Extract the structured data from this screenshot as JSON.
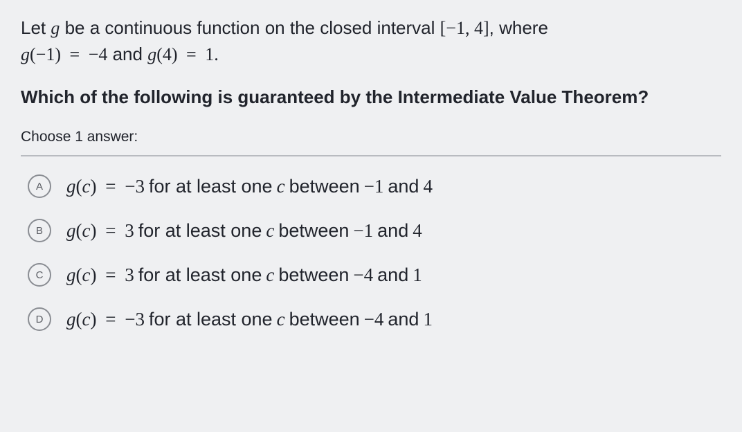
{
  "intro": {
    "part1": "Let ",
    "g": "g",
    "part2": " be a continuous function on the closed interval ",
    "interval_open": "[",
    "interval_a": "−1",
    "interval_comma": ", ",
    "interval_b": "4",
    "interval_close": "]",
    "part3": ", where",
    "line2_g1": "g",
    "line2_p1o": "(",
    "line2_arg1": "−1",
    "line2_p1c": ")",
    "line2_eq1": " = ",
    "line2_val1": "−4",
    "line2_and": " and ",
    "line2_g2": "g",
    "line2_p2o": "(",
    "line2_arg2": "4",
    "line2_p2c": ")",
    "line2_eq2": " = ",
    "line2_val2": "1",
    "line2_period": "."
  },
  "prompt": "Which of the following is guaranteed by the Intermediate Value Theorem?",
  "choose_label": "Choose 1 answer:",
  "options": [
    {
      "letter": "A",
      "g": "g",
      "po": "(",
      "c": "c",
      "pc": ")",
      "eq": " = ",
      "val": "−3",
      "mid": " for at least one ",
      "cvar": "c",
      "between": " between ",
      "a": "−1",
      "and": " and ",
      "b": "4"
    },
    {
      "letter": "B",
      "g": "g",
      "po": "(",
      "c": "c",
      "pc": ")",
      "eq": " = ",
      "val": "3",
      "mid": " for at least one ",
      "cvar": "c",
      "between": " between ",
      "a": "−1",
      "and": " and ",
      "b": "4"
    },
    {
      "letter": "C",
      "g": "g",
      "po": "(",
      "c": "c",
      "pc": ")",
      "eq": " = ",
      "val": "3",
      "mid": " for at least one ",
      "cvar": "c",
      "between": " between ",
      "a": "−4",
      "and": " and ",
      "b": "1"
    },
    {
      "letter": "D",
      "g": "g",
      "po": "(",
      "c": "c",
      "pc": ")",
      "eq": " = ",
      "val": "−3",
      "mid": " for at least one ",
      "cvar": "c",
      "between": " between ",
      "a": "−4",
      "and": " and ",
      "b": "1"
    }
  ],
  "styling": {
    "background_color": "#eff0f2",
    "text_color": "#21242c",
    "circle_border_color": "#8a8d93",
    "circle_text_color": "#5a5d63",
    "divider_color": "#b8bbc0",
    "body_fontsize": 26,
    "prompt_fontweight": 700,
    "choose_fontsize": 21,
    "option_fontsize": 27,
    "circle_size": 34,
    "option_gap": 30
  }
}
